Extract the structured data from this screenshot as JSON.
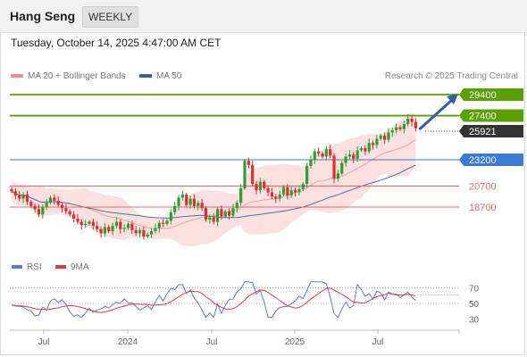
{
  "header": {
    "title": "Hang Seng",
    "period": "WEEKLY"
  },
  "timestamp": "Tuesday, October 14, 2025 4:47:00 AM CET",
  "legend": {
    "bollinger": "MA 20 + Bollinger Bands",
    "ma50": "MA 50"
  },
  "credit": "Research © 2025 Trading Central",
  "rsi_legend": {
    "rsi": "RSI",
    "ma": "9MA"
  },
  "colors": {
    "resistance": "#5aa000",
    "support": "#e06c6c",
    "pivot": "#3a7bd5",
    "price": "#333333",
    "candle_up": "#2e9e2e",
    "candle_down": "#d93030",
    "band_fill": "#fbd6d6",
    "ma50": "#4a6fa5",
    "arrow": "#2f5ea8",
    "rsi_line": "#5b7fc7",
    "rsi_ma": "#e23a3a"
  },
  "chart_data": {
    "type": "candlestick",
    "title": "Hang Seng",
    "timeframe": "WEEKLY",
    "x_ticks": [
      "Jul",
      "2024",
      "Jul",
      "2025",
      "Jul"
    ],
    "y_range": [
      15500,
      30500
    ],
    "last_price": 25921,
    "levels": [
      {
        "value": 29400,
        "label": "29400",
        "kind": "resistance"
      },
      {
        "value": 27400,
        "label": "27400",
        "kind": "resistance"
      },
      {
        "value": 25921,
        "label": "25921",
        "kind": "last"
      },
      {
        "value": 23200,
        "label": "23200",
        "kind": "pivot"
      },
      {
        "value": 20700,
        "label": "20700",
        "kind": "support"
      },
      {
        "value": 18700,
        "label": "18700",
        "kind": "support"
      }
    ],
    "closes": [
      20200,
      19800,
      19500,
      19900,
      19200,
      18800,
      18500,
      18000,
      18700,
      19100,
      19600,
      19300,
      18900,
      18600,
      18300,
      18000,
      17600,
      17300,
      17000,
      17100,
      17300,
      16900,
      16600,
      16200,
      16800,
      16400,
      16900,
      17300,
      16600,
      16700,
      17100,
      16500,
      16200,
      16500,
      15900,
      16100,
      16400,
      16700,
      17200,
      17100,
      17400,
      18200,
      18800,
      19600,
      19900,
      18900,
      19500,
      18800,
      19100,
      18600,
      17500,
      17700,
      17300,
      18500,
      17800,
      18300,
      17900,
      18600,
      19100,
      20500,
      23100,
      22700,
      20900,
      20300,
      21100,
      20500,
      20100,
      19700,
      19500,
      19900,
      20600,
      19800,
      20300,
      20100,
      20400,
      20900,
      22600,
      23200,
      24000,
      23800,
      23500,
      24200,
      23600,
      21400,
      21900,
      22900,
      23500,
      23700,
      23300,
      24100,
      24300,
      24000,
      24800,
      24600,
      25200,
      25500,
      25100,
      25800,
      26000,
      26300,
      26100,
      26600,
      27100,
      26800,
      26200
    ],
    "rsi": {
      "levels": [
        70,
        50,
        30
      ],
      "last": 61
    }
  }
}
